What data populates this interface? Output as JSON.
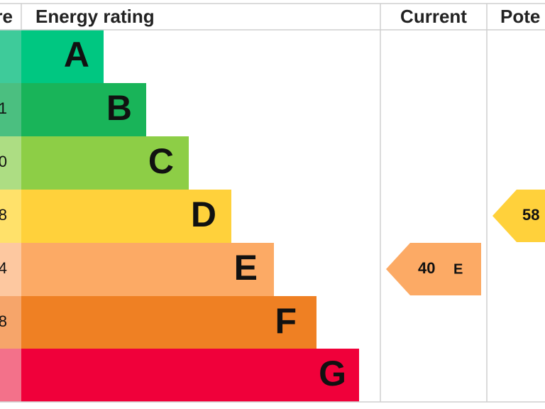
{
  "header": {
    "score": "re",
    "rating": "Energy rating",
    "current": "Current",
    "potential": "Pote"
  },
  "rows": [
    {
      "letter": "A"
    },
    {
      "letter": "B",
      "score": "1"
    },
    {
      "letter": "C",
      "score": "0"
    },
    {
      "letter": "D",
      "score": "8"
    },
    {
      "letter": "E",
      "score": "4"
    },
    {
      "letter": "F",
      "score": "8"
    },
    {
      "letter": "G"
    }
  ],
  "current": {
    "value": 40,
    "band": "E"
  },
  "potential": {
    "label": "58"
  }
}
